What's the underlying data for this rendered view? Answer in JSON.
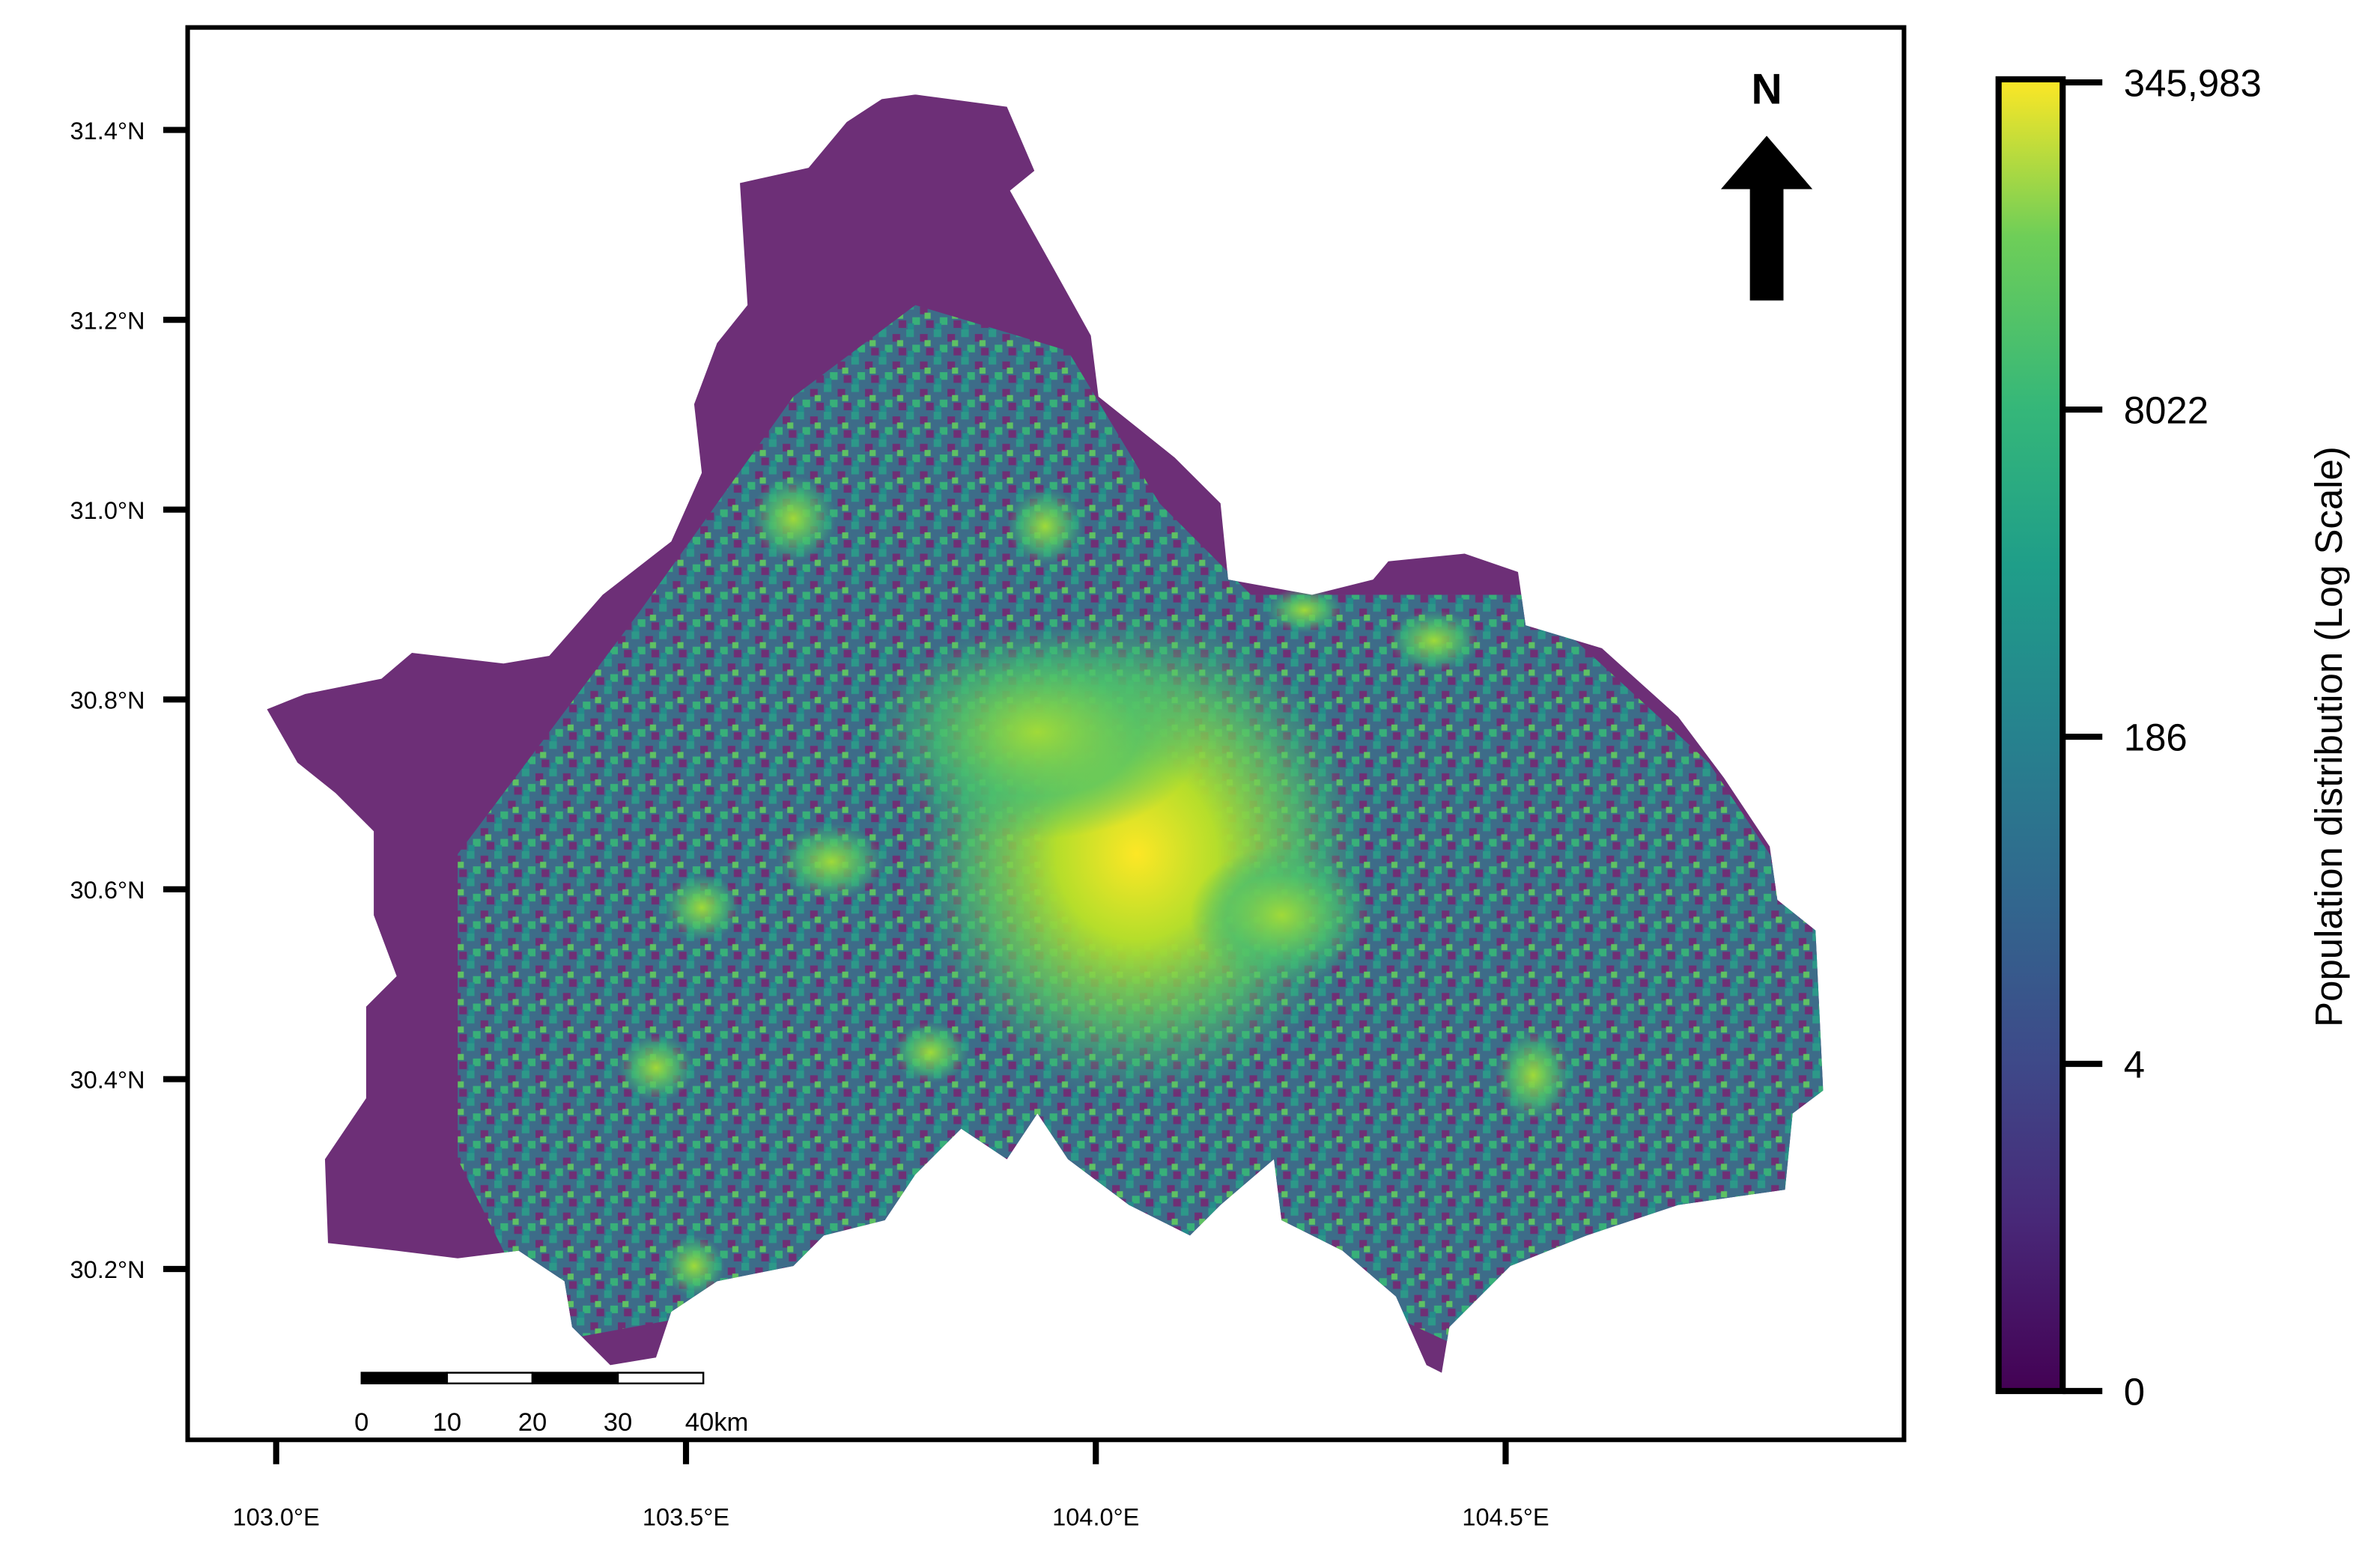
{
  "map": {
    "xlim": [
      102.892,
      104.986
    ],
    "ylim": [
      30.02,
      31.508
    ],
    "xticks": [
      {
        "value": 103.0,
        "label": "103.0°E"
      },
      {
        "value": 103.5,
        "label": "103.5°E"
      },
      {
        "value": 104.0,
        "label": "104.0°E"
      },
      {
        "value": 104.5,
        "label": "104.5°E"
      }
    ],
    "yticks": [
      {
        "value": 30.2,
        "label": "30.2°N"
      },
      {
        "value": 30.4,
        "label": "30.4°N"
      },
      {
        "value": 30.6,
        "label": "30.6°N"
      },
      {
        "value": 30.8,
        "label": "30.8°N"
      },
      {
        "value": 31.0,
        "label": "31.0°N"
      },
      {
        "value": 31.2,
        "label": "31.2°N"
      },
      {
        "value": 31.4,
        "label": "31.4°N"
      }
    ]
  },
  "north_label": "N",
  "scale_bar": {
    "ticks": [
      0,
      10,
      20,
      30,
      {
        "value": 40,
        "label": "40km"
      }
    ]
  },
  "colorbar": {
    "title": "Population distribution (Log Scale)",
    "ticks": [
      0,
      4,
      186,
      8022,
      {
        "value": 345983,
        "label": "345,983"
      }
    ]
  }
}
